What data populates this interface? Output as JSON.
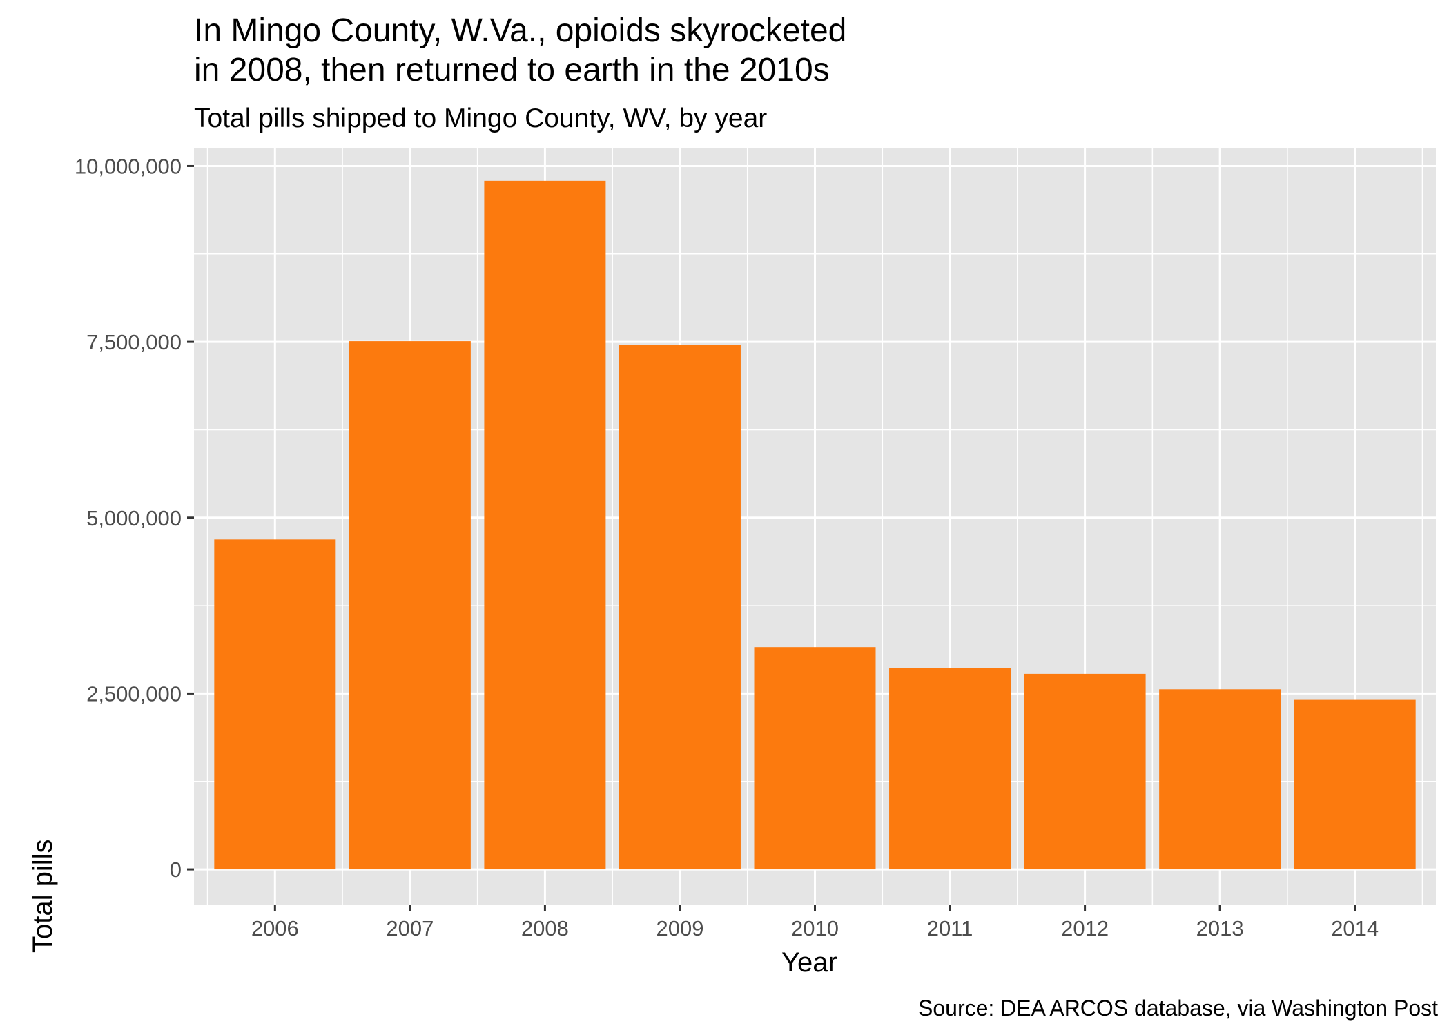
{
  "chart_data": {
    "type": "bar",
    "title_line1": "In Mingo County, W.Va., opioids skyrocketed",
    "title_line2": "in 2008, then returned to earth in the 2010s",
    "subtitle": "Total pills shipped to Mingo County, WV, by year",
    "xlabel": "Year",
    "ylabel": "Total pills",
    "caption": "Source: DEA ARCOS database, via Washington Post",
    "categories": [
      "2006",
      "2007",
      "2008",
      "2009",
      "2010",
      "2011",
      "2012",
      "2013",
      "2014"
    ],
    "values": [
      4690000,
      7510000,
      9790000,
      7460000,
      3160000,
      2860000,
      2780000,
      2560000,
      2410000
    ],
    "ylim": [
      -500000,
      10250000
    ],
    "yticks": [
      0,
      2500000,
      5000000,
      7500000,
      10000000
    ],
    "ytick_labels": [
      "0",
      "2,500,000",
      "5,000,000",
      "7,500,000",
      "10,000,000"
    ],
    "grid": true,
    "bar_color": "#FC7A0E",
    "panel_color": "#E5E5E5",
    "grid_color": "#FFFFFF"
  }
}
